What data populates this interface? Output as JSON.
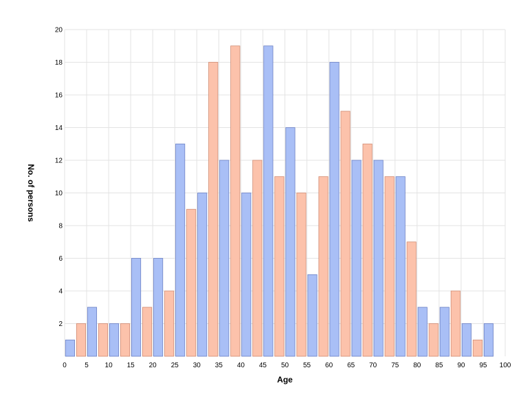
{
  "chart_data": {
    "type": "bar",
    "xlabel": "Age",
    "ylabel": "No. of persons",
    "xlim": [
      0,
      100
    ],
    "ylim": [
      0,
      20
    ],
    "x_ticks": [
      "0",
      "5",
      "10",
      "15",
      "20",
      "25",
      "30",
      "35",
      "40",
      "45",
      "50",
      "55",
      "60",
      "65",
      "70",
      "75",
      "80",
      "85",
      "90",
      "95",
      "100"
    ],
    "y_ticks": [
      "2",
      "4",
      "6",
      "8",
      "10",
      "12",
      "14",
      "16",
      "18",
      "20"
    ],
    "grid": true,
    "legend": "none",
    "colors": {
      "series_a": "#a9bff6",
      "series_a_stroke": "#6a7fc4",
      "series_b": "#fcc2ab",
      "series_b_stroke": "#d08a72",
      "grid": "#e3e3e3"
    },
    "bin_width": 5,
    "series": [
      {
        "values": [
          1,
          3,
          2,
          6,
          6,
          13,
          10,
          12,
          10,
          19,
          14,
          5,
          18,
          12,
          12,
          11,
          3,
          3,
          2,
          2
        ]
      },
      {
        "values": [
          2,
          2,
          2,
          3,
          4,
          9,
          18,
          19,
          12,
          11,
          10,
          11,
          15,
          13,
          11,
          7,
          2,
          4,
          1,
          null
        ]
      }
    ]
  }
}
